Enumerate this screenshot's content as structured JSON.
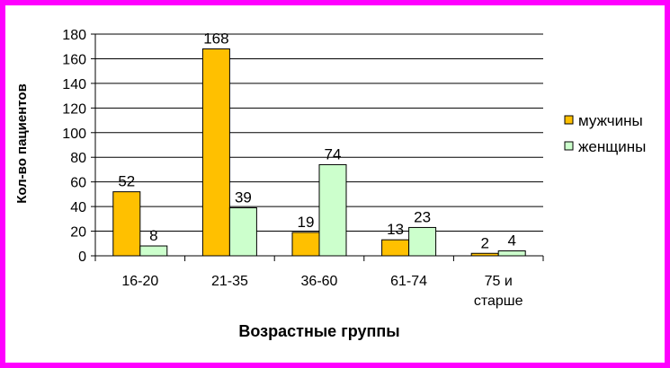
{
  "chart_data": {
    "type": "bar",
    "categories": [
      [
        "16-20"
      ],
      [
        "21-35"
      ],
      [
        "36-60"
      ],
      [
        "61-74"
      ],
      [
        "75 и",
        "старше"
      ]
    ],
    "series": [
      {
        "name": "мужчины",
        "values": [
          52,
          168,
          19,
          13,
          2
        ],
        "color": "#ffc000"
      },
      {
        "name": "женщины",
        "values": [
          8,
          39,
          74,
          23,
          4
        ],
        "color": "#ccffcc"
      }
    ],
    "ylim": [
      0,
      180
    ],
    "yticks": [
      0,
      20,
      40,
      60,
      80,
      100,
      120,
      140,
      160,
      180
    ],
    "xlabel": "Возрастные группы",
    "ylabel": "Кол-во пациентов",
    "grid": true,
    "legend": "right"
  }
}
